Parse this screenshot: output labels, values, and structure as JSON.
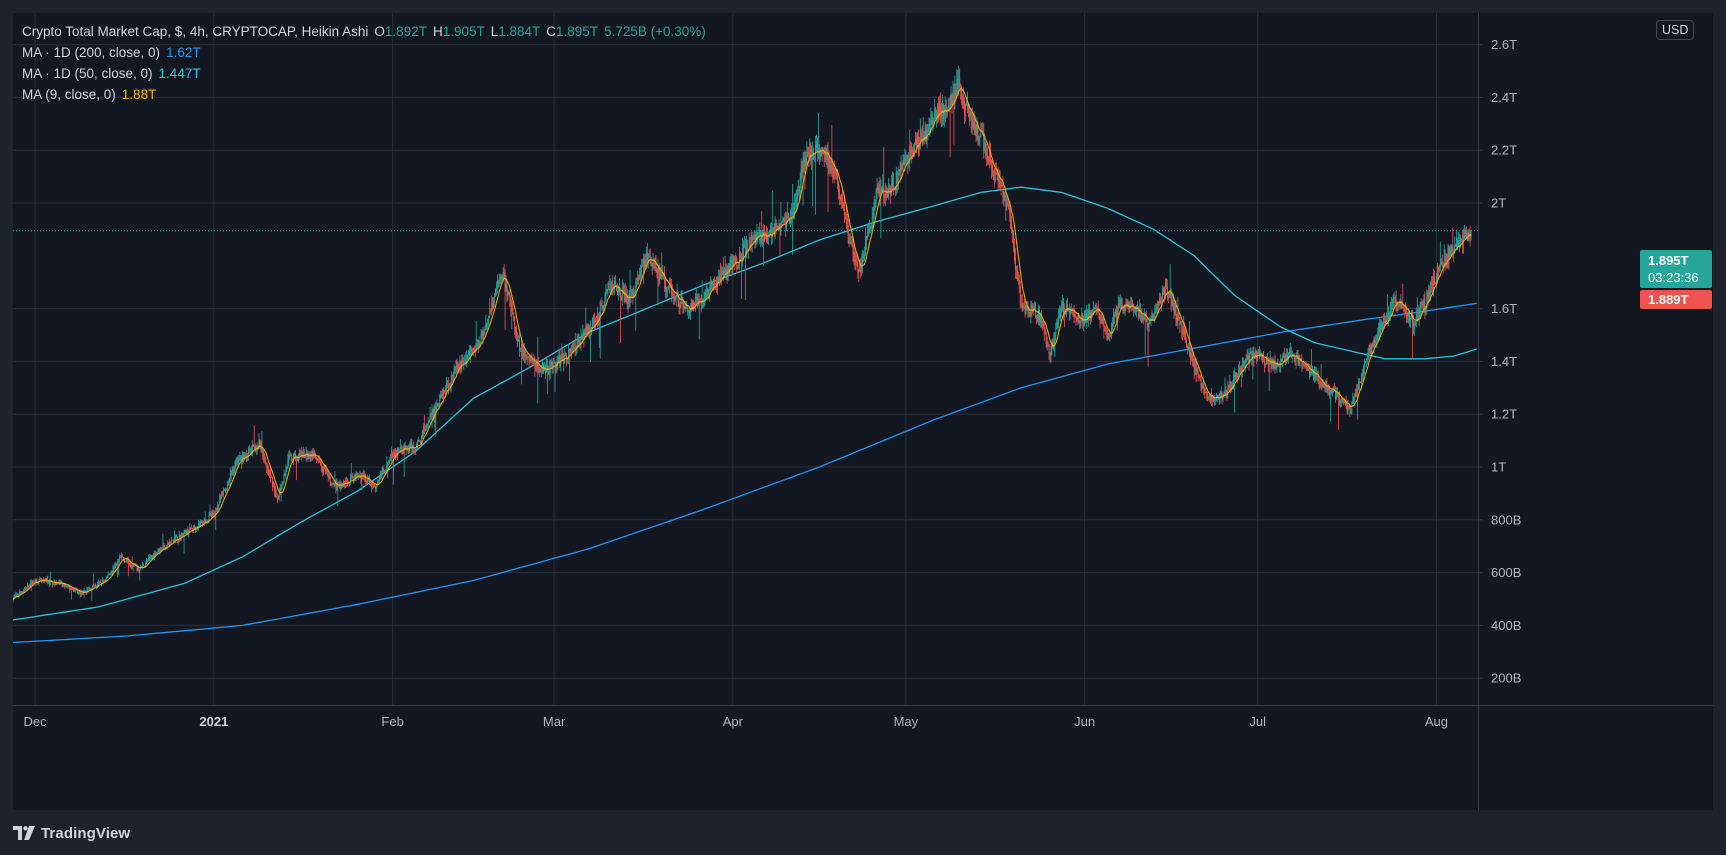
{
  "legend": {
    "title": "Crypto Total Market Cap, $, 4h, CRYPTOCAP, Heikin Ashi",
    "ohlc": {
      "o_label": "O",
      "o": "1.892T",
      "h_label": "H",
      "h": "1.905T",
      "l_label": "L",
      "l": "1.884T",
      "c_label": "C",
      "c": "1.895T",
      "change": "5.725B (+0.30%)"
    },
    "ma_200": {
      "label": "MA · 1D (200, close, 0)",
      "value": "1.62T"
    },
    "ma_50": {
      "label": "MA · 1D (50, close, 0)",
      "value": "1.447T"
    },
    "ma_9": {
      "label": "MA (9, close, 0)",
      "value": "1.88T"
    }
  },
  "currency": "USD",
  "last_price": {
    "value": "1.895T",
    "countdown": "03:23:36",
    "color": "#26a69a"
  },
  "ma9_price": {
    "value": "1.889T",
    "color": "#ef5350"
  },
  "footer": {
    "brand": "TradingView"
  },
  "colors": {
    "up": "#26a69a",
    "down": "#ef5350",
    "ma200": "#2196f3",
    "ma50": "#26c6da",
    "ma9": "#ffb300",
    "grid": "#2a2e39",
    "text": "#b2b5be"
  },
  "chart_data": {
    "type": "candlestick",
    "title": "Crypto Total Market Cap, $, 4h, CRYPTOCAP, Heikin Ashi",
    "y_unit": "USD (trillions)",
    "ylim": [
      0.1,
      2.7
    ],
    "y_ticks": [
      {
        "v": 2.6,
        "label": "2.6T"
      },
      {
        "v": 2.4,
        "label": "2.4T"
      },
      {
        "v": 2.2,
        "label": "2.2T"
      },
      {
        "v": 2.0,
        "label": "2T"
      },
      {
        "v": 1.6,
        "label": "1.6T"
      },
      {
        "v": 1.4,
        "label": "1.4T"
      },
      {
        "v": 1.2,
        "label": "1.2T"
      },
      {
        "v": 1.0,
        "label": "1T"
      },
      {
        "v": 0.8,
        "label": "800B"
      },
      {
        "v": 0.6,
        "label": "600B"
      },
      {
        "v": 0.4,
        "label": "400B"
      },
      {
        "v": 0.2,
        "label": "200B"
      }
    ],
    "x_unit": "days since 2020-11-28",
    "xlim": [
      0,
      254.5
    ],
    "x_ticks": [
      {
        "d": 4,
        "label": "Dec",
        "bold": false
      },
      {
        "d": 35,
        "label": "2021",
        "bold": true
      },
      {
        "d": 66,
        "label": "Feb",
        "bold": false
      },
      {
        "d": 94,
        "label": "Mar",
        "bold": false
      },
      {
        "d": 125,
        "label": "Apr",
        "bold": false
      },
      {
        "d": 155,
        "label": "May",
        "bold": false
      },
      {
        "d": 186,
        "label": "Jun",
        "bold": false
      },
      {
        "d": 216,
        "label": "Jul",
        "bold": false
      },
      {
        "d": 247,
        "label": "Aug",
        "bold": false
      }
    ],
    "last_close": 1.895,
    "price_path": [
      [
        0,
        0.5
      ],
      [
        4,
        0.57
      ],
      [
        8,
        0.56
      ],
      [
        12,
        0.52
      ],
      [
        16,
        0.57
      ],
      [
        19,
        0.66
      ],
      [
        22,
        0.61
      ],
      [
        25,
        0.68
      ],
      [
        30,
        0.75
      ],
      [
        35,
        0.82
      ],
      [
        39,
        1.02
      ],
      [
        43,
        1.09
      ],
      [
        46,
        0.88
      ],
      [
        48,
        1.03
      ],
      [
        52,
        1.05
      ],
      [
        56,
        0.92
      ],
      [
        60,
        0.97
      ],
      [
        63,
        0.93
      ],
      [
        66,
        1.05
      ],
      [
        70,
        1.08
      ],
      [
        74,
        1.25
      ],
      [
        77,
        1.37
      ],
      [
        81,
        1.47
      ],
      [
        85,
        1.74
      ],
      [
        88,
        1.45
      ],
      [
        91,
        1.38
      ],
      [
        93,
        1.37
      ],
      [
        96,
        1.42
      ],
      [
        99,
        1.5
      ],
      [
        101,
        1.55
      ],
      [
        104,
        1.71
      ],
      [
        107,
        1.62
      ],
      [
        110,
        1.8
      ],
      [
        113,
        1.7
      ],
      [
        117,
        1.6
      ],
      [
        120,
        1.65
      ],
      [
        124,
        1.74
      ],
      [
        128,
        1.85
      ],
      [
        132,
        1.9
      ],
      [
        135,
        1.95
      ],
      [
        138,
        2.2
      ],
      [
        141,
        2.19
      ],
      [
        143,
        2.1
      ],
      [
        145,
        1.87
      ],
      [
        147,
        1.75
      ],
      [
        150,
        2.03
      ],
      [
        153,
        2.07
      ],
      [
        156,
        2.2
      ],
      [
        160,
        2.32
      ],
      [
        163,
        2.4
      ],
      [
        164,
        2.45
      ],
      [
        166,
        2.33
      ],
      [
        169,
        2.2
      ],
      [
        171,
        2.07
      ],
      [
        173,
        1.95
      ],
      [
        175,
        1.6
      ],
      [
        178,
        1.58
      ],
      [
        180,
        1.43
      ],
      [
        182,
        1.62
      ],
      [
        185,
        1.55
      ],
      [
        188,
        1.6
      ],
      [
        190,
        1.48
      ],
      [
        192,
        1.62
      ],
      [
        195,
        1.58
      ],
      [
        197,
        1.55
      ],
      [
        200,
        1.68
      ],
      [
        203,
        1.52
      ],
      [
        205,
        1.38
      ],
      [
        207,
        1.28
      ],
      [
        209,
        1.25
      ],
      [
        211,
        1.3
      ],
      [
        213,
        1.38
      ],
      [
        215,
        1.42
      ],
      [
        217,
        1.41
      ],
      [
        219,
        1.38
      ],
      [
        221,
        1.43
      ],
      [
        224,
        1.38
      ],
      [
        226,
        1.34
      ],
      [
        228,
        1.3
      ],
      [
        230,
        1.26
      ],
      [
        232,
        1.22
      ],
      [
        234,
        1.35
      ],
      [
        236,
        1.48
      ],
      [
        238,
        1.56
      ],
      [
        240,
        1.64
      ],
      [
        243,
        1.55
      ],
      [
        245,
        1.62
      ],
      [
        247,
        1.73
      ],
      [
        249,
        1.81
      ],
      [
        251,
        1.85
      ],
      [
        253,
        1.895
      ]
    ],
    "ma_200_path": [
      [
        0,
        0.335
      ],
      [
        20,
        0.36
      ],
      [
        40,
        0.4
      ],
      [
        60,
        0.48
      ],
      [
        80,
        0.57
      ],
      [
        100,
        0.69
      ],
      [
        120,
        0.84
      ],
      [
        140,
        1.0
      ],
      [
        160,
        1.18
      ],
      [
        175,
        1.3
      ],
      [
        190,
        1.39
      ],
      [
        205,
        1.45
      ],
      [
        220,
        1.51
      ],
      [
        235,
        1.56
      ],
      [
        245,
        1.59
      ],
      [
        254,
        1.62
      ]
    ],
    "ma_50_path": [
      [
        0,
        0.42
      ],
      [
        15,
        0.47
      ],
      [
        30,
        0.56
      ],
      [
        40,
        0.66
      ],
      [
        50,
        0.79
      ],
      [
        60,
        0.91
      ],
      [
        70,
        1.06
      ],
      [
        80,
        1.26
      ],
      [
        90,
        1.38
      ],
      [
        100,
        1.51
      ],
      [
        110,
        1.6
      ],
      [
        120,
        1.69
      ],
      [
        130,
        1.77
      ],
      [
        140,
        1.86
      ],
      [
        150,
        1.93
      ],
      [
        160,
        1.99
      ],
      [
        168,
        2.04
      ],
      [
        175,
        2.06
      ],
      [
        182,
        2.04
      ],
      [
        190,
        1.98
      ],
      [
        198,
        1.9
      ],
      [
        205,
        1.8
      ],
      [
        212,
        1.65
      ],
      [
        220,
        1.53
      ],
      [
        226,
        1.47
      ],
      [
        232,
        1.44
      ],
      [
        238,
        1.41
      ],
      [
        245,
        1.41
      ],
      [
        250,
        1.42
      ],
      [
        254,
        1.447
      ]
    ]
  }
}
